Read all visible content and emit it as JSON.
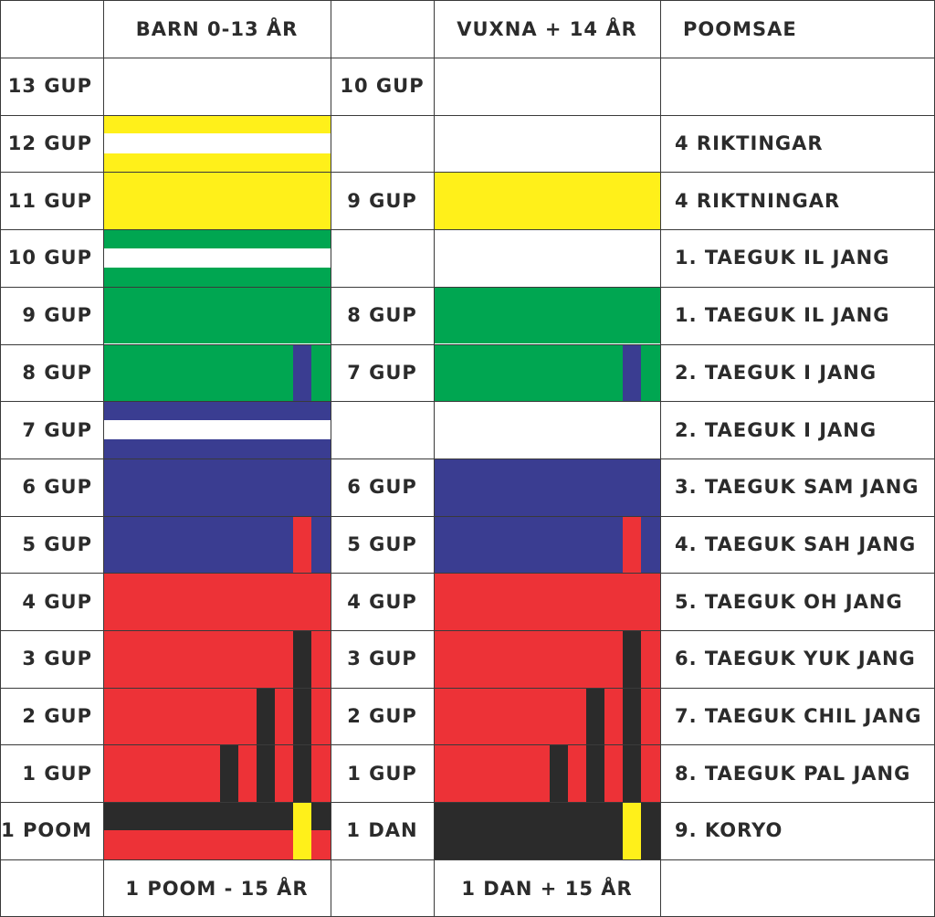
{
  "header": {
    "col0": "",
    "barn": "BARN 0-13 ÅR",
    "col2": "",
    "vuxna": "VUXNA + 14 ÅR",
    "poomsae": "POOMSAE"
  },
  "rows": [
    {
      "barn_grade": "13 GUP",
      "vuxna_grade": "10 GUP",
      "poomsae": "",
      "barn_belt": {
        "base": "#ffffff",
        "center_stripe": null,
        "tips": []
      },
      "vuxna_belt": {
        "base": "#ffffff",
        "tips": []
      }
    },
    {
      "barn_grade": "12 GUP",
      "vuxna_grade": "",
      "poomsae": "4 RIKTINGAR",
      "barn_belt": {
        "base": "#fff01a",
        "center_stripe": "#ffffff",
        "tips": []
      },
      "vuxna_belt": {
        "base": "#ffffff",
        "tips": []
      }
    },
    {
      "barn_grade": "11 GUP",
      "vuxna_grade": "9 GUP",
      "poomsae": "4 RIKTNINGAR",
      "barn_belt": {
        "base": "#fff01a",
        "center_stripe": null,
        "tips": []
      },
      "vuxna_belt": {
        "base": "#fff01a",
        "tips": []
      }
    },
    {
      "barn_grade": "10 GUP",
      "vuxna_grade": "",
      "poomsae": "1. TAEGUK IL JANG",
      "barn_belt": {
        "base": "#00a651",
        "center_stripe": "#ffffff",
        "tips": []
      },
      "vuxna_belt": {
        "base": "#ffffff",
        "tips": []
      }
    },
    {
      "barn_grade": "9 GUP",
      "vuxna_grade": "8 GUP",
      "poomsae": "1. TAEGUK IL JANG",
      "barn_belt": {
        "base": "#00a651",
        "center_stripe": null,
        "tips": []
      },
      "vuxna_belt": {
        "base": "#00a651",
        "tips": []
      }
    },
    {
      "barn_grade": "8 GUP",
      "vuxna_grade": "7 GUP",
      "poomsae": "2. TAEGUK I JANG",
      "barn_belt": {
        "base": "#00a651",
        "center_stripe": null,
        "tips": [
          "#3a3d91"
        ]
      },
      "vuxna_belt": {
        "base": "#00a651",
        "tips": [
          "#3a3d91"
        ]
      }
    },
    {
      "barn_grade": "7 GUP",
      "vuxna_grade": "",
      "poomsae": "2. TAEGUK I JANG",
      "barn_belt": {
        "base": "#3a3d91",
        "center_stripe": "#ffffff",
        "tips": []
      },
      "vuxna_belt": {
        "base": "#ffffff",
        "tips": []
      }
    },
    {
      "barn_grade": "6 GUP",
      "vuxna_grade": "6 GUP",
      "poomsae": "3. TAEGUK SAM JANG",
      "barn_belt": {
        "base": "#3a3d91",
        "center_stripe": null,
        "tips": []
      },
      "vuxna_belt": {
        "base": "#3a3d91",
        "tips": []
      }
    },
    {
      "barn_grade": "5 GUP",
      "vuxna_grade": "5 GUP",
      "poomsae": "4. TAEGUK SAH JANG",
      "barn_belt": {
        "base": "#3a3d91",
        "center_stripe": null,
        "tips": [
          "#ed3237"
        ]
      },
      "vuxna_belt": {
        "base": "#3a3d91",
        "tips": [
          "#ed3237"
        ]
      }
    },
    {
      "barn_grade": "4 GUP",
      "vuxna_grade": "4 GUP",
      "poomsae": "5. TAEGUK OH JANG",
      "barn_belt": {
        "base": "#ed3237",
        "center_stripe": null,
        "tips": []
      },
      "vuxna_belt": {
        "base": "#ed3237",
        "tips": []
      }
    },
    {
      "barn_grade": "3 GUP",
      "vuxna_grade": "3 GUP",
      "poomsae": "6. TAEGUK YUK JANG",
      "barn_belt": {
        "base": "#ed3237",
        "center_stripe": null,
        "tips": [
          "#2b2b2b"
        ]
      },
      "vuxna_belt": {
        "base": "#ed3237",
        "tips": [
          "#2b2b2b"
        ]
      }
    },
    {
      "barn_grade": "2 GUP",
      "vuxna_grade": "2 GUP",
      "poomsae": "7. TAEGUK CHIL JANG",
      "barn_belt": {
        "base": "#ed3237",
        "center_stripe": null,
        "tips": [
          "#2b2b2b",
          "#2b2b2b"
        ]
      },
      "vuxna_belt": {
        "base": "#ed3237",
        "tips": [
          "#2b2b2b",
          "#2b2b2b"
        ]
      }
    },
    {
      "barn_grade": "1 GUP",
      "vuxna_grade": "1 GUP",
      "poomsae": "8. TAEGUK PAL JANG",
      "barn_belt": {
        "base": "#ed3237",
        "center_stripe": null,
        "tips": [
          "#2b2b2b",
          "#2b2b2b",
          "#2b2b2b"
        ]
      },
      "vuxna_belt": {
        "base": "#ed3237",
        "tips": [
          "#2b2b2b",
          "#2b2b2b",
          "#2b2b2b"
        ]
      }
    },
    {
      "barn_grade": "1 POOM",
      "vuxna_grade": "1 DAN",
      "poomsae": "9. KORYO",
      "barn_belt": {
        "base": "poom",
        "center_stripe": null,
        "tips": [
          "#fff01a"
        ]
      },
      "vuxna_belt": {
        "base": "#2b2b2b",
        "tips": [
          "#fff01a"
        ]
      }
    }
  ],
  "footer": {
    "barn": "1 POOM - 15 ÅR",
    "vuxna": "1 DAN + 15 ÅR"
  },
  "colors": {
    "yellow": "#fff01a",
    "green": "#00a651",
    "blue": "#3a3d91",
    "red": "#ed3237",
    "black": "#2b2b2b",
    "white": "#ffffff"
  }
}
